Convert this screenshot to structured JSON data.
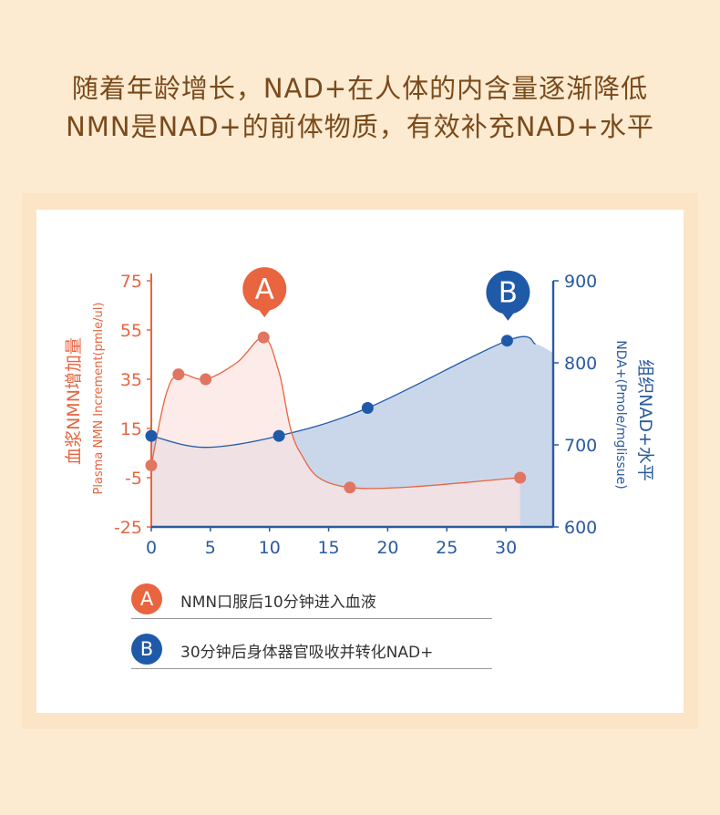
{
  "header": {
    "line1": "随着年龄增长，NAD+在人体的内含量逐渐降低",
    "line2": "NMN是NAD+的前体物质，有效补充NAD+水平"
  },
  "colors": {
    "red": "#e8653f",
    "red_fill": "#fbe4e1",
    "red_marker": "#e07562",
    "blue": "#1f5aa8",
    "blue_fill": "#c7d5ea",
    "axis_blue": "#2a5a9f"
  },
  "chart_data": {
    "type": "line",
    "x_ticks": [
      "0",
      "5",
      "10",
      "15",
      "20",
      "25",
      "30"
    ],
    "xlim": [
      0,
      34
    ],
    "left_axis": {
      "label_cn": "血浆NMN增加量",
      "label_en": "Plasma NMN Increment(pmle/ul)",
      "ticks": [
        "75",
        "55",
        "35",
        "15",
        "-5",
        "-25"
      ],
      "ylim": [
        -25,
        75
      ]
    },
    "right_axis": {
      "label_cn": "组织NAD+水平",
      "label_en": "NDA+(Pmole/mglissue)",
      "ticks": [
        "900",
        "800",
        "700",
        "600"
      ],
      "ylim": [
        600,
        900
      ]
    },
    "series": [
      {
        "axis": "left",
        "points": [
          [
            0,
            0
          ],
          [
            2.3,
            37
          ],
          [
            4.6,
            35
          ],
          [
            9.5,
            52
          ],
          [
            16.8,
            -9
          ],
          [
            31.2,
            -5
          ]
        ]
      },
      {
        "axis": "right",
        "points": [
          [
            0,
            711
          ],
          [
            10.8,
            711
          ],
          [
            18.3,
            745
          ],
          [
            30.1,
            827
          ]
        ]
      }
    ],
    "callouts": [
      {
        "label": "A",
        "x": 9.5,
        "y_axis": "left"
      },
      {
        "label": "B",
        "x": 30.1,
        "y_axis": "right"
      }
    ]
  },
  "legend": [
    {
      "badge": "A",
      "text": "NMN口服后10分钟进入血液"
    },
    {
      "badge": "B",
      "text": "30分钟后身体器官吸收并转化NAD+"
    }
  ]
}
